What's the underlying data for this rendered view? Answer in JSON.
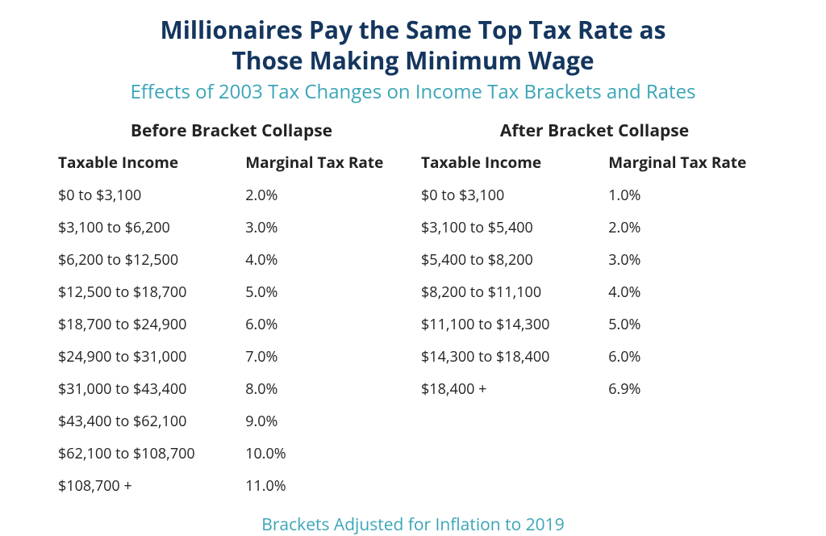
{
  "title_line1": "Millionaires Pay the Same Top Tax Rate as",
  "title_line2": "Those Making Minimum Wage",
  "subtitle": "Effects of 2003 Tax Changes on Income Tax Brackets and Rates",
  "footnote": "Brackets Adjusted for Inflation to 2019",
  "colors": {
    "title": "#14365e",
    "subtitle": "#3aa5b7",
    "body": "#232323",
    "background": "#ffffff"
  },
  "typography": {
    "title_fontsize": 30,
    "subtitle_fontsize": 24,
    "section_header_fontsize": 21,
    "th_fontsize": 19,
    "td_fontsize": 18,
    "footnote_fontsize": 21,
    "title_weight": 700,
    "header_weight": 700,
    "body_weight": 400
  },
  "before": {
    "header": "Before Bracket Collapse",
    "columns": [
      "Taxable Income",
      "Marginal Tax Rate"
    ],
    "rows": [
      [
        "$0 to $3,100",
        "2.0%"
      ],
      [
        "$3,100 to $6,200",
        "3.0%"
      ],
      [
        "$6,200 to $12,500",
        "4.0%"
      ],
      [
        "$12,500 to $18,700",
        "5.0%"
      ],
      [
        "$18,700 to $24,900",
        "6.0%"
      ],
      [
        "$24,900 to $31,000",
        "7.0%"
      ],
      [
        "$31,000 to $43,400",
        "8.0%"
      ],
      [
        "$43,400 to $62,100",
        "9.0%"
      ],
      [
        "$62,100 to $108,700",
        "10.0%"
      ],
      [
        "$108,700 +",
        "11.0%"
      ]
    ]
  },
  "after": {
    "header": "After Bracket Collapse",
    "columns": [
      "Taxable Income",
      "Marginal Tax Rate"
    ],
    "rows": [
      [
        "$0 to $3,100",
        "1.0%"
      ],
      [
        "$3,100 to $5,400",
        "2.0%"
      ],
      [
        "$5,400 to $8,200",
        "3.0%"
      ],
      [
        "$8,200 to $11,100",
        "4.0%"
      ],
      [
        "$11,100 to $14,300",
        "5.0%"
      ],
      [
        "$14,300 to $18,400",
        "6.0%"
      ],
      [
        "$18,400 +",
        "6.9%"
      ]
    ]
  }
}
